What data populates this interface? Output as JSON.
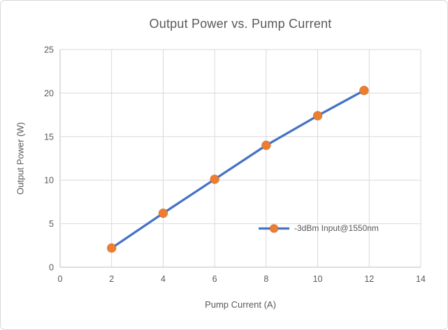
{
  "chart_data": {
    "type": "line",
    "title": "Output Power vs. Pump Current",
    "xlabel": "Pump Current (A)",
    "ylabel": "Output Power (W)",
    "xlim": [
      0,
      14
    ],
    "ylim": [
      0,
      25
    ],
    "x_ticks": [
      0,
      2,
      4,
      6,
      8,
      10,
      12,
      14
    ],
    "y_ticks": [
      0,
      5,
      10,
      15,
      20,
      25
    ],
    "grid": true,
    "legend_position": "inside-bottom-right",
    "series": [
      {
        "name": "-3dBm Input@1550nm",
        "x": [
          2,
          4,
          6,
          8,
          10,
          11.8
        ],
        "y": [
          2.2,
          6.2,
          10.1,
          14.0,
          17.4,
          20.3
        ],
        "line_color": "#4472C4",
        "marker_color": "#ED7D31",
        "marker_shape": "circle"
      }
    ],
    "style": {
      "text_color": "#595959",
      "gridline_color": "#D9D9D9",
      "axis_line_color": "#BFBFBF",
      "frame_border_color": "#D7D7D7",
      "background_color": "#FFFFFF"
    }
  }
}
